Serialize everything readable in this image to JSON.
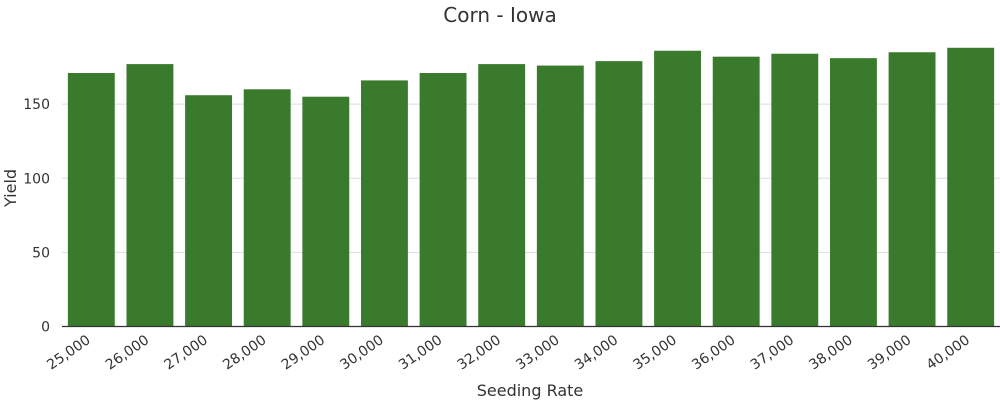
{
  "chart_data": {
    "type": "bar",
    "title": "Corn - Iowa",
    "xlabel": "Seeding Rate",
    "ylabel": "Yield",
    "categories": [
      "25,000",
      "26,000",
      "27,000",
      "28,000",
      "29,000",
      "30,000",
      "31,000",
      "32,000",
      "33,000",
      "34,000",
      "35,000",
      "36,000",
      "37,000",
      "38,000",
      "39,000",
      "40,000"
    ],
    "values": [
      171,
      177,
      156,
      160,
      155,
      166,
      171,
      177,
      176,
      179,
      186,
      182,
      184,
      181,
      185,
      188
    ],
    "ylim": [
      0,
      200
    ],
    "yticks": [
      0,
      50,
      100,
      150
    ],
    "grid": "horizontal",
    "bar_color": "#3a7a2c"
  }
}
